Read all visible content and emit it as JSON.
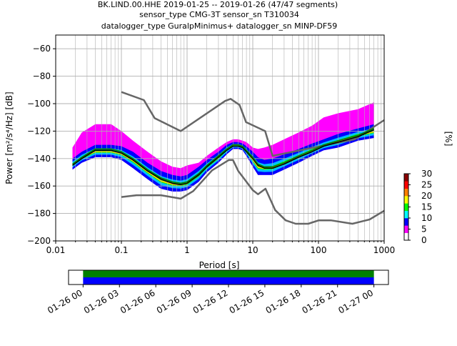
{
  "title": {
    "line1": "BK.LIND.00.HHE   2019-01-25 -- 2019-01-26  (47/47 segments)",
    "line2": "sensor_type CMG-3T sensor_sn T310034",
    "line3": "datalogger_type GuralpMinimus+ datalogger_sn MINP-DF59"
  },
  "chart_data": [
    {
      "type": "heatmap",
      "xlabel": "Period [s]",
      "ylabel": "Power [m²/s⁴/Hz] [dB]",
      "xscale": "log",
      "xlim": [
        0.01,
        1000
      ],
      "ylim": [
        -200,
        -50
      ],
      "xticks": [
        {
          "value": 0.01,
          "label": "0.01"
        },
        {
          "value": 0.1,
          "label": "0.1"
        },
        {
          "value": 1,
          "label": "1"
        },
        {
          "value": 10,
          "label": "10"
        },
        {
          "value": 100,
          "label": "100"
        },
        {
          "value": 1000,
          "label": "1000"
        }
      ],
      "yticks": [
        -200,
        -180,
        -160,
        -140,
        -120,
        -100,
        -80,
        -60
      ],
      "grid": true,
      "colorbar": {
        "label": "[%]",
        "min": 0,
        "max": 30,
        "ticks": [
          0,
          5,
          10,
          15,
          20,
          25,
          30
        ],
        "colors": [
          "#ffffff",
          "#ff00ff",
          "#0000ff",
          "#00ffff",
          "#00ff00",
          "#ffff00",
          "#ff8000",
          "#ff0000",
          "#8b0000"
        ]
      },
      "series": [
        {
          "role": "noise model high",
          "color": "#666666",
          "x": [
            0.1,
            0.22,
            0.32,
            0.8,
            3.8,
            4.6,
            6.3,
            7.9,
            15.4,
            20,
            354.8,
            1000
          ],
          "y": [
            -91.5,
            -97.4,
            -110.5,
            -120,
            -98,
            -96.5,
            -101,
            -113.5,
            -120,
            -138,
            -126,
            -112
          ]
        },
        {
          "role": "noise model low",
          "color": "#666666",
          "x": [
            0.1,
            0.17,
            0.4,
            0.8,
            1.24,
            2.4,
            4.3,
            5,
            6,
            10,
            12,
            15.6,
            21.9,
            31.6,
            45,
            70,
            101,
            154,
            328,
            600,
            1000
          ],
          "y": [
            -168,
            -166.7,
            -166.7,
            -169.2,
            -163.7,
            -148.6,
            -141.1,
            -141.1,
            -149,
            -163,
            -166,
            -162,
            -177.5,
            -185,
            -187.5,
            -187.5,
            -185,
            -185,
            -187.5,
            -184.4,
            -178
          ]
        },
        {
          "role": "mode",
          "color": "#000000",
          "x": [
            0.018,
            0.025,
            0.04,
            0.07,
            0.1,
            0.15,
            0.25,
            0.4,
            0.6,
            0.8,
            1.0,
            1.5,
            2,
            3,
            4,
            5,
            6,
            7,
            8,
            10,
            12,
            15,
            20,
            30,
            50,
            80,
            120,
            200,
            400,
            700
          ],
          "y": [
            -145,
            -140,
            -134,
            -134,
            -136,
            -141,
            -149,
            -155,
            -158,
            -159,
            -158,
            -152,
            -146,
            -139,
            -134,
            -131,
            -131,
            -132,
            -135,
            -140,
            -145,
            -147,
            -147,
            -144,
            -139,
            -135,
            -131,
            -128,
            -124,
            -119
          ]
        },
        {
          "role": "mean",
          "color": "#008000",
          "x": [
            0.018,
            0.025,
            0.04,
            0.07,
            0.1,
            0.15,
            0.25,
            0.4,
            0.6,
            0.8,
            1.0,
            1.5,
            2,
            3,
            4,
            5,
            6,
            7,
            8,
            10,
            12,
            15,
            20,
            30,
            50,
            80,
            120,
            200,
            400,
            700
          ],
          "y": [
            -144,
            -139,
            -133,
            -133,
            -135,
            -140,
            -148,
            -154,
            -157,
            -158,
            -157,
            -151,
            -145,
            -138,
            -133,
            -130,
            -130,
            -131,
            -134,
            -139,
            -144,
            -146,
            -146,
            -143,
            -138,
            -134,
            -130,
            -127,
            -123,
            -118
          ]
        }
      ],
      "density_band": {
        "x": [
          0.018,
          0.025,
          0.04,
          0.07,
          0.1,
          0.15,
          0.25,
          0.4,
          0.6,
          0.8,
          1.0,
          1.5,
          2,
          3,
          4,
          5,
          6,
          7,
          8,
          10,
          12,
          15,
          20,
          30,
          50,
          80,
          120,
          200,
          400,
          700
        ],
        "low": [
          -148,
          -143,
          -139,
          -139,
          -141,
          -147,
          -155,
          -162,
          -164,
          -164,
          -163,
          -157,
          -150,
          -143,
          -137,
          -133,
          -133,
          -134,
          -138,
          -146,
          -152,
          -152,
          -152,
          -148,
          -143,
          -138,
          -134,
          -132,
          -127,
          -125
        ],
        "high": [
          -140,
          -135,
          -130,
          -130,
          -131,
          -135,
          -143,
          -149,
          -152,
          -153,
          -152,
          -146,
          -141,
          -135,
          -130,
          -128,
          -128,
          -129,
          -131,
          -135,
          -139,
          -141,
          -140,
          -137,
          -133,
          -129,
          -126,
          -122,
          -118,
          -115
        ],
        "outer_high": [
          -132,
          -121,
          -115,
          -115,
          -120,
          -127,
          -135,
          -142,
          -146,
          -147,
          -145,
          -143,
          -138,
          -132,
          -128,
          -126,
          -126,
          -127,
          -128,
          -132,
          -133,
          -132,
          -130,
          -126,
          -121,
          -116,
          -110,
          -107,
          -104,
          -99
        ]
      }
    },
    {
      "type": "timeline",
      "xticks": [
        "01-26 00",
        "01-26 03",
        "01-26 06",
        "01-26 09",
        "01-26 12",
        "01-26 15",
        "01-26 18",
        "01-26 21",
        "01-27 00"
      ],
      "tick_hours": [
        0,
        3,
        6,
        9,
        12,
        15,
        18,
        21,
        24
      ],
      "xlim_hours": [
        -1.2,
        25.2
      ],
      "coverage": [
        {
          "start_hour": 0,
          "end_hour": 24,
          "color": "#008000"
        },
        {
          "start_hour": 0,
          "end_hour": 24,
          "color": "#0000ff"
        }
      ]
    }
  ]
}
